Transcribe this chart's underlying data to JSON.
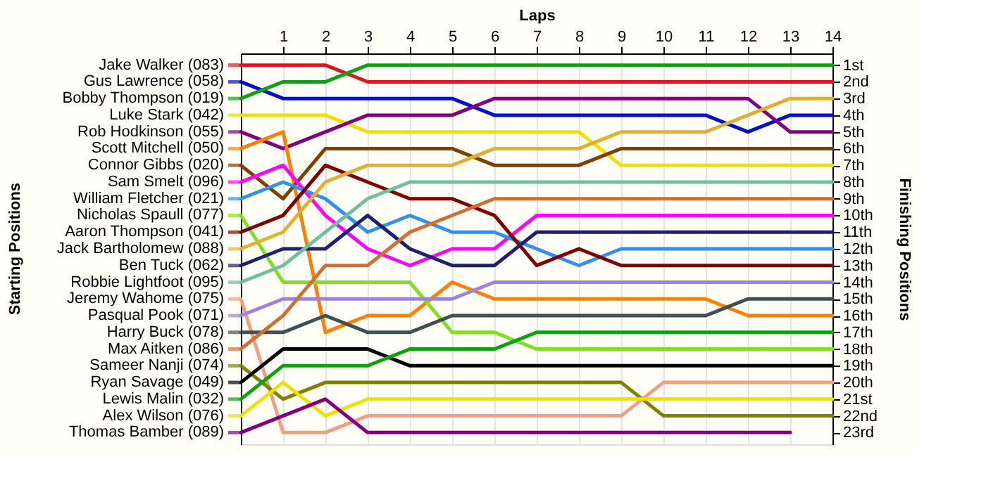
{
  "chart_data": {
    "type": "line",
    "xlabel": "Laps",
    "ylabel": "Finishing Positions",
    "annotations": [
      "Starting Positions"
    ],
    "x": [
      0,
      1,
      2,
      3,
      4,
      5,
      6,
      7,
      8,
      9,
      10,
      11,
      12,
      13,
      14
    ],
    "xlim": [
      0,
      14
    ],
    "xticks": [
      1,
      2,
      3,
      4,
      5,
      6,
      7,
      8,
      9,
      10,
      11,
      12,
      13,
      14
    ],
    "ylim": [
      23.7,
      0.3
    ],
    "yticks": [
      {
        "value": 1,
        "label": "1st"
      },
      {
        "value": 2,
        "label": "2nd"
      },
      {
        "value": 3,
        "label": "3rd"
      },
      {
        "value": 4,
        "label": "4th"
      },
      {
        "value": 5,
        "label": "5th"
      },
      {
        "value": 6,
        "label": "6th"
      },
      {
        "value": 7,
        "label": "7th"
      },
      {
        "value": 8,
        "label": "8th"
      },
      {
        "value": 9,
        "label": "9th"
      },
      {
        "value": 10,
        "label": "10th"
      },
      {
        "value": 11,
        "label": "11th"
      },
      {
        "value": 12,
        "label": "12th"
      },
      {
        "value": 13,
        "label": "13th"
      },
      {
        "value": 14,
        "label": "14th"
      },
      {
        "value": 15,
        "label": "15th"
      },
      {
        "value": 16,
        "label": "16th"
      },
      {
        "value": 17,
        "label": "17th"
      },
      {
        "value": 18,
        "label": "18th"
      },
      {
        "value": 19,
        "label": "19th"
      },
      {
        "value": 20,
        "label": "20th"
      },
      {
        "value": 21,
        "label": "21st"
      },
      {
        "value": 22,
        "label": "22nd"
      },
      {
        "value": 23,
        "label": "23rd"
      }
    ],
    "grid": "x",
    "legend": "left",
    "series": [
      {
        "name": "Jake Walker (083)",
        "color": "#e0141e",
        "values": [
          1,
          1,
          1,
          2,
          2,
          2,
          2,
          2,
          2,
          2,
          2,
          2,
          2,
          2,
          2
        ]
      },
      {
        "name": "Gus Lawrence (058)",
        "color": "#0010d0",
        "values": [
          2,
          3,
          3,
          3,
          3,
          3,
          4,
          4,
          4,
          4,
          4,
          4,
          5,
          4,
          4
        ]
      },
      {
        "name": "Bobby Thompson (019)",
        "color": "#10a010",
        "values": [
          3,
          2,
          2,
          1,
          1,
          1,
          1,
          1,
          1,
          1,
          1,
          1,
          1,
          1,
          1
        ]
      },
      {
        "name": "Luke Stark (042)",
        "color": "#f0e000",
        "values": [
          4,
          4,
          4,
          5,
          5,
          5,
          5,
          5,
          5,
          7,
          7,
          7,
          7,
          7,
          7
        ]
      },
      {
        "name": "Rob Hodkinson (055)",
        "color": "#800080",
        "values": [
          5,
          6,
          5,
          4,
          4,
          4,
          3,
          3,
          3,
          3,
          3,
          3,
          3,
          5,
          5
        ]
      },
      {
        "name": "Scott Mitchell (050)",
        "color": "#ff8000",
        "values": [
          6,
          5,
          17,
          16,
          16,
          14,
          15,
          15,
          15,
          15,
          15,
          15,
          16,
          16,
          16
        ]
      },
      {
        "name": "Connor Gibbs (020)",
        "color": "#804000",
        "values": [
          7,
          9,
          6,
          6,
          6,
          6,
          7,
          7,
          7,
          6,
          6,
          6,
          6,
          6,
          6
        ]
      },
      {
        "name": "Sam Smelt (096)",
        "color": "#ff00ff",
        "values": [
          8,
          7,
          10,
          12,
          13,
          12,
          12,
          10,
          10,
          10,
          10,
          10,
          10,
          10,
          10
        ]
      },
      {
        "name": "William Fletcher (021)",
        "color": "#3090f0",
        "values": [
          9,
          8,
          9,
          11,
          10,
          11,
          11,
          12,
          13,
          12,
          12,
          12,
          12,
          12,
          12
        ]
      },
      {
        "name": "Nicholas Spaull (077)",
        "color": "#80e020",
        "values": [
          10,
          14,
          14,
          14,
          14,
          17,
          17,
          18,
          18,
          18,
          18,
          18,
          18,
          18,
          18
        ]
      },
      {
        "name": "Aaron Thompson (041)",
        "color": "#800000",
        "values": [
          11,
          10,
          7,
          8,
          9,
          9,
          10,
          13,
          12,
          13,
          13,
          13,
          13,
          13,
          13
        ]
      },
      {
        "name": "Jack Bartholomew (088)",
        "color": "#e0b030",
        "values": [
          12,
          11,
          8,
          7,
          7,
          7,
          6,
          6,
          6,
          5,
          5,
          5,
          4,
          3,
          3
        ]
      },
      {
        "name": "Ben Tuck (062)",
        "color": "#202070",
        "values": [
          13,
          12,
          12,
          10,
          12,
          13,
          13,
          11,
          11,
          11,
          11,
          11,
          11,
          11,
          11
        ]
      },
      {
        "name": "Robbie Lightfoot (095)",
        "color": "#70c0a0",
        "values": [
          14,
          13,
          11,
          9,
          8,
          8,
          8,
          8,
          8,
          8,
          8,
          8,
          8,
          8,
          8
        ]
      },
      {
        "name": "Jeremy Wahome (075)",
        "color": "#f0a080",
        "values": [
          15,
          23,
          23,
          22,
          22,
          22,
          22,
          22,
          22,
          22,
          20,
          20,
          20,
          20,
          20
        ]
      },
      {
        "name": "Pasqual Pook (071)",
        "color": "#a080e0",
        "values": [
          16,
          15,
          15,
          15,
          15,
          15,
          14,
          14,
          14,
          14,
          14,
          14,
          14,
          14,
          14
        ]
      },
      {
        "name": "Harry Buck (078)",
        "color": "#405050",
        "values": [
          17,
          17,
          16,
          17,
          17,
          16,
          16,
          16,
          16,
          16,
          16,
          16,
          15,
          15,
          15
        ]
      },
      {
        "name": "Max Aitken (086)",
        "color": "#d07030",
        "values": [
          18,
          16,
          13,
          13,
          11,
          10,
          9,
          9,
          9,
          9,
          9,
          9,
          9,
          9,
          9
        ]
      },
      {
        "name": "Sameer Nanji (074)",
        "color": "#808000",
        "values": [
          19,
          21,
          20,
          20,
          20,
          20,
          20,
          20,
          20,
          20,
          22,
          22,
          22,
          22,
          22
        ]
      },
      {
        "name": "Ryan Savage (049)",
        "color": "#000000",
        "values": [
          20,
          18,
          18,
          18,
          19,
          19,
          19,
          19,
          19,
          19,
          19,
          19,
          19,
          19,
          19
        ]
      },
      {
        "name": "Lewis Malin (032)",
        "color": "#10a010",
        "values": [
          21,
          19,
          19,
          19,
          18,
          18,
          18,
          17,
          17,
          17,
          17,
          17,
          17,
          17,
          17
        ]
      },
      {
        "name": "Alex Wilson (076)",
        "color": "#f0e000",
        "values": [
          22,
          20,
          22,
          21,
          21,
          21,
          21,
          21,
          21,
          21,
          21,
          21,
          21,
          21,
          21
        ]
      },
      {
        "name": "Thomas Bamber (089)",
        "color": "#800080",
        "values": [
          23,
          22,
          21,
          23,
          23,
          23,
          23,
          23,
          23,
          23,
          23,
          23,
          23,
          23,
          null
        ]
      }
    ]
  }
}
